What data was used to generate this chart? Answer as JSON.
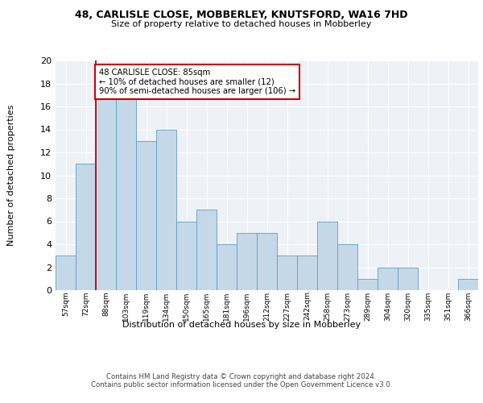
{
  "title1": "48, CARLISLE CLOSE, MOBBERLEY, KNUTSFORD, WA16 7HD",
  "title2": "Size of property relative to detached houses in Mobberley",
  "xlabel": "Distribution of detached houses by size in Mobberley",
  "ylabel": "Number of detached properties",
  "categories": [
    "57sqm",
    "72sqm",
    "88sqm",
    "103sqm",
    "119sqm",
    "134sqm",
    "150sqm",
    "165sqm",
    "181sqm",
    "196sqm",
    "212sqm",
    "227sqm",
    "242sqm",
    "258sqm",
    "273sqm",
    "289sqm",
    "304sqm",
    "320sqm",
    "335sqm",
    "351sqm",
    "366sqm"
  ],
  "values": [
    3,
    11,
    17,
    17,
    13,
    14,
    6,
    7,
    4,
    5,
    5,
    3,
    3,
    6,
    4,
    1,
    2,
    2,
    0,
    0,
    1
  ],
  "bar_color": "#c5d8e8",
  "bar_edge_color": "#5a9fc8",
  "ylim": [
    0,
    20
  ],
  "yticks": [
    0,
    2,
    4,
    6,
    8,
    10,
    12,
    14,
    16,
    18,
    20
  ],
  "vline_color": "#cc0000",
  "annotation_text": "48 CARLISLE CLOSE: 85sqm\n← 10% of detached houses are smaller (12)\n90% of semi-detached houses are larger (106) →",
  "annotation_box_color": "#ffffff",
  "annotation_box_edge": "#cc0000",
  "footer": "Contains HM Land Registry data © Crown copyright and database right 2024.\nContains public sector information licensed under the Open Government Licence v3.0.",
  "bg_color": "#eef2f7",
  "fig_bg": "#ffffff"
}
